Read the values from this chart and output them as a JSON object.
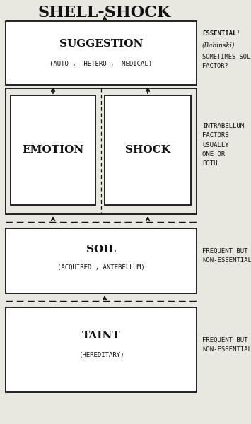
{
  "title": "SHELL-SHOCK",
  "bg_color": "#e8e8e0",
  "box_facecolor": "#ffffff",
  "border_color": "#111111",
  "text_color": "#111111",
  "suggestion_label": "SUGGESTION",
  "suggestion_sub": "(AUTO-,  HETERO-,  MEDICAL)",
  "suggestion_note1": "ESSENTIAL!",
  "suggestion_note2": "(Babinski)",
  "suggestion_note3": "SOMETIMES SOLE\nFACTOR?",
  "emotion_label": "EMOTION",
  "shock_label": "SHOCK",
  "intrabellum_note": "INTRABELLUM\nFACTORS\nUSUALLY\nONE OR\nBOTH",
  "soil_label": "SOIL",
  "soil_sub": "(ACQUIRED , ANTEBELLUM)",
  "soil_note": "FREQUENT BUT\nNON-ESSENTIAL",
  "taint_label": "TAINT",
  "taint_sub": "(HEREDITARY)",
  "taint_note": "FREQUENT BUT\nNON-ESSENTIAL",
  "title_fontsize": 16,
  "main_label_fontsize": 11,
  "sub_fontsize": 6.5,
  "note_fontsize": 6.5,
  "lw": 1.3
}
